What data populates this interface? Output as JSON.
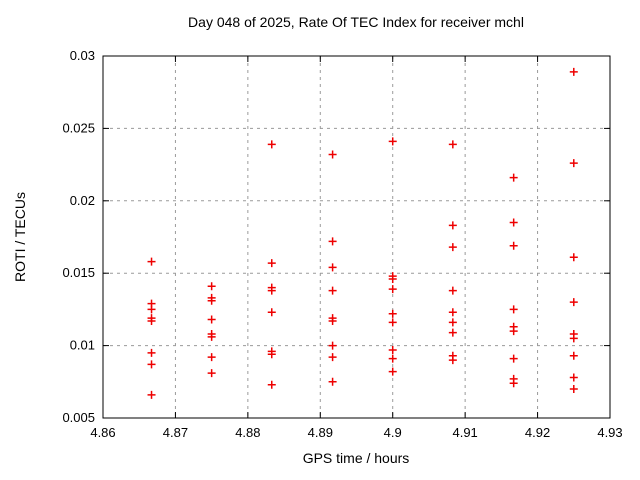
{
  "chart_data": {
    "type": "scatter",
    "title": "Day 048 of 2025, Rate Of TEC Index for receiver mchl",
    "xlabel": "GPS time / hours",
    "ylabel": "ROTI / TECUs",
    "xlim": [
      4.86,
      4.93
    ],
    "ylim": [
      0.005,
      0.03
    ],
    "xtick_values": [
      4.86,
      4.87,
      4.88,
      4.89,
      4.9,
      4.91,
      4.92,
      4.93
    ],
    "xtick_labels": [
      "4.86",
      "4.87",
      "4.88",
      "4.89",
      "4.9",
      "4.91",
      "4.92",
      "4.93"
    ],
    "ytick_values": [
      0.005,
      0.01,
      0.015,
      0.02,
      0.025,
      0.03
    ],
    "ytick_labels": [
      "0.005",
      "0.01",
      "0.015",
      "0.02",
      "0.025",
      "0.03"
    ],
    "grid": true,
    "legend": "none",
    "marker": {
      "shape": "plus",
      "color": "#ee0000",
      "size": 8
    },
    "grid_color": "#9a9a9a",
    "border_color": "#000000",
    "series": [
      {
        "name": "ROTI",
        "groups": [
          {
            "x": 4.8667,
            "y": [
              0.0158,
              0.0129,
              0.0125,
              0.0119,
              0.0117,
              0.0095,
              0.0087,
              0.0066
            ]
          },
          {
            "x": 4.875,
            "y": [
              0.0141,
              0.0133,
              0.0131,
              0.0118,
              0.0108,
              0.0106,
              0.0092,
              0.0081
            ]
          },
          {
            "x": 4.8833,
            "y": [
              0.0239,
              0.0157,
              0.014,
              0.0138,
              0.0123,
              0.0096,
              0.0094,
              0.0073
            ]
          },
          {
            "x": 4.8917,
            "y": [
              0.0232,
              0.0172,
              0.0154,
              0.0138,
              0.0119,
              0.0117,
              0.01,
              0.0092,
              0.0075
            ]
          },
          {
            "x": 4.9,
            "y": [
              0.0241,
              0.0148,
              0.0146,
              0.0139,
              0.0122,
              0.0116,
              0.0097,
              0.0091,
              0.0082
            ]
          },
          {
            "x": 4.9083,
            "y": [
              0.0239,
              0.0183,
              0.0168,
              0.0138,
              0.0123,
              0.0116,
              0.0109,
              0.0093,
              0.009
            ]
          },
          {
            "x": 4.9167,
            "y": [
              0.0216,
              0.0185,
              0.0169,
              0.0125,
              0.0113,
              0.011,
              0.0091,
              0.0077,
              0.0074
            ]
          },
          {
            "x": 4.925,
            "y": [
              0.0289,
              0.0226,
              0.0161,
              0.013,
              0.0108,
              0.0105,
              0.0093,
              0.0078,
              0.007
            ]
          }
        ]
      }
    ]
  }
}
